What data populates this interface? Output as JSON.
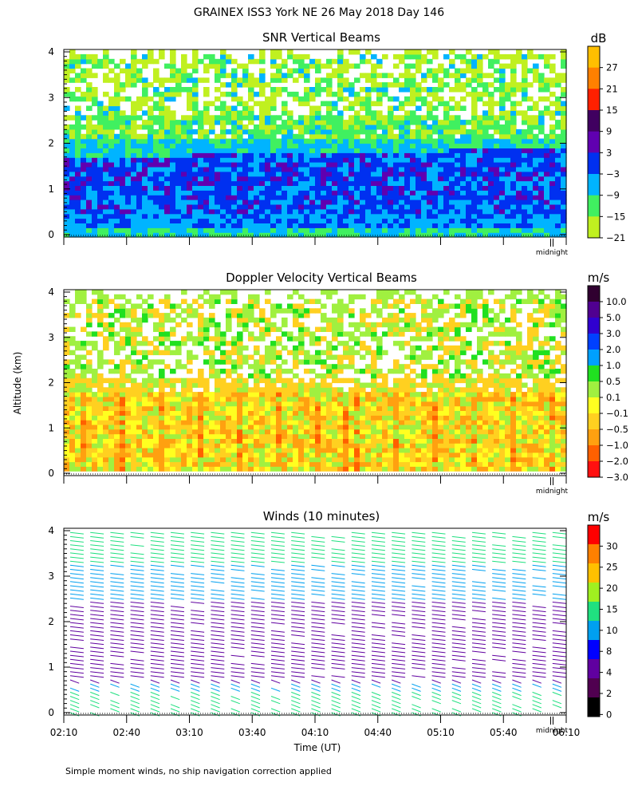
{
  "figure": {
    "title": "GRAINEX ISS3 York NE  26 May 2018 Day 146",
    "y_axis_label": "Altitude (km)",
    "x_axis_label": "Time (UT)",
    "footnote": "Simple moment winds, no ship navigation correction applied",
    "midnight_label": "midnight"
  },
  "chart_data": [
    {
      "type": "heatmap",
      "title": "SNR Vertical Beams",
      "colorbar_unit": "dB",
      "ylim": [
        0,
        4
      ],
      "yticks": [
        "0",
        "1",
        "2",
        "3",
        "4"
      ],
      "colorbar_labels": [
        "27",
        "21",
        "15",
        "9",
        "3",
        "−3",
        "−9",
        "−15",
        "−21"
      ],
      "colorbar_colors": [
        "#ffbf00",
        "#ff8000",
        "#ff2000",
        "#400060",
        "#6000b0",
        "#0030f0",
        "#00b4ff",
        "#40f060",
        "#c0f020"
      ]
    },
    {
      "type": "heatmap",
      "title": "Doppler Velocity Vertical Beams",
      "colorbar_unit": "m/s",
      "ylim": [
        0,
        4
      ],
      "yticks": [
        "0",
        "1",
        "2",
        "3",
        "4"
      ],
      "colorbar_labels": [
        "10.0",
        "5.0",
        "3.0",
        "2.0",
        "1.0",
        "0.5",
        "0.1",
        "−0.1",
        "−0.5",
        "−1.0",
        "−2.0",
        "−3.0"
      ],
      "colorbar_colors": [
        "#300030",
        "#500090",
        "#3000d0",
        "#0040ff",
        "#00a0ff",
        "#20e020",
        "#a0f040",
        "#ffff20",
        "#ffd020",
        "#ffa010",
        "#ff6000",
        "#ff1010"
      ]
    },
    {
      "type": "scatter",
      "title": "Winds (10 minutes)",
      "colorbar_unit": "m/s",
      "ylim": [
        0,
        4
      ],
      "yticks": [
        "0",
        "1",
        "2",
        "3",
        "4"
      ],
      "xticks": [
        "02:10",
        "02:40",
        "03:10",
        "03:40",
        "04:10",
        "04:40",
        "05:10",
        "05:40",
        "06:10"
      ],
      "colorbar_labels": [
        "30",
        "25",
        "20",
        "15",
        "10",
        "8",
        "4",
        "2",
        "0"
      ],
      "colorbar_colors": [
        "#ff0000",
        "#ff8000",
        "#ffc000",
        "#a0f020",
        "#20e080",
        "#00a0f0",
        "#0000ff",
        "#6000a0",
        "#500050",
        "#000000"
      ]
    }
  ]
}
